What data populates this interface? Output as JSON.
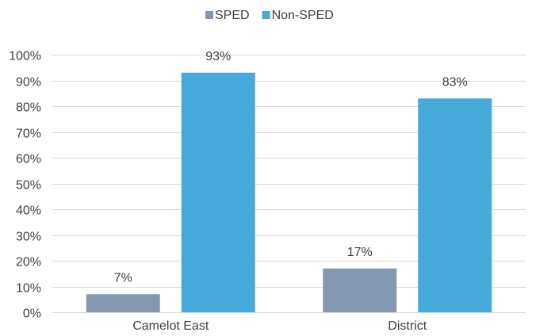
{
  "chart_data": {
    "type": "bar",
    "categories": [
      "Camelot East",
      "District"
    ],
    "series": [
      {
        "name": "SPED",
        "values": [
          7,
          17
        ],
        "color": "#8497B0"
      },
      {
        "name": "Non-SPED",
        "values": [
          93,
          83
        ],
        "color": "#47A9DA"
      }
    ],
    "data_labels": [
      [
        "7%",
        "17%"
      ],
      [
        "93%",
        "83%"
      ]
    ],
    "ylim": [
      0,
      100
    ],
    "yticks": [
      0,
      10,
      20,
      30,
      40,
      50,
      60,
      70,
      80,
      90,
      100
    ],
    "ytick_labels": [
      "0%",
      "10%",
      "20%",
      "30%",
      "40%",
      "50%",
      "60%",
      "70%",
      "80%",
      "90%",
      "100%"
    ],
    "grid": true,
    "legend": "top-center",
    "gridline_color": "#D9D9D9"
  }
}
